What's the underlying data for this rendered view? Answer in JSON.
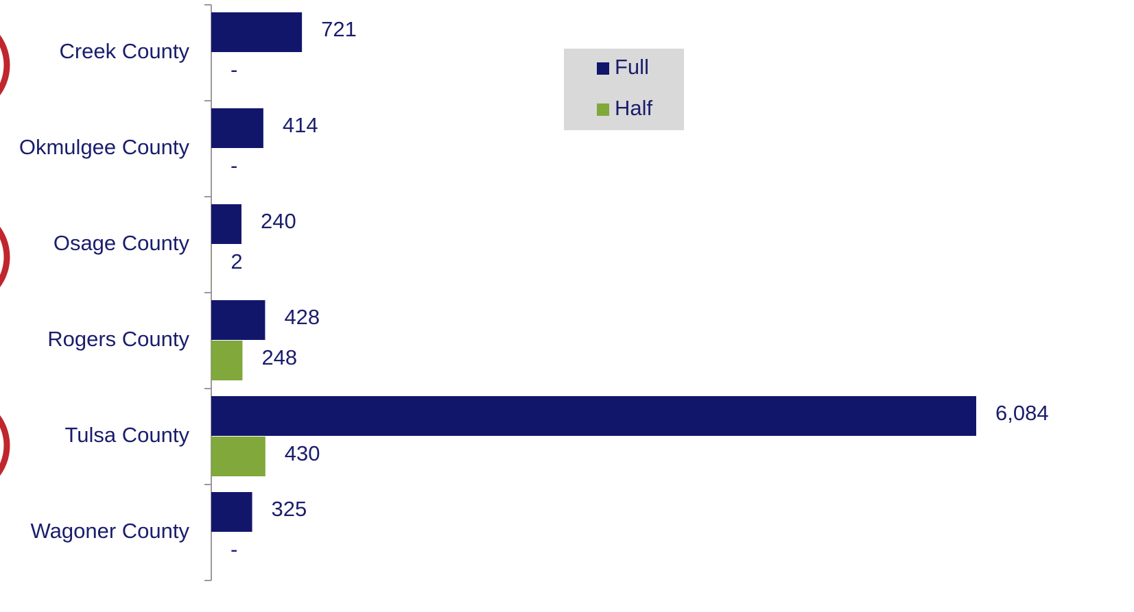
{
  "chart_data": {
    "type": "bar",
    "orientation": "horizontal",
    "categories": [
      "Creek County",
      "Okmulgee County",
      "Osage County",
      "Rogers County",
      "Tulsa County",
      "Wagoner County"
    ],
    "series": [
      {
        "name": "Full",
        "color": "#12166b",
        "values": [
          721,
          414,
          240,
          428,
          6084,
          325
        ],
        "value_labels": [
          "721",
          "414",
          "240",
          "428",
          "6,084",
          "325"
        ]
      },
      {
        "name": "Half",
        "color": "#80a83a",
        "values": [
          0,
          0,
          2,
          248,
          430,
          0
        ],
        "value_labels": [
          "-",
          "-",
          "2",
          "248",
          "430",
          "-"
        ]
      }
    ],
    "legend": "top-center"
  }
}
